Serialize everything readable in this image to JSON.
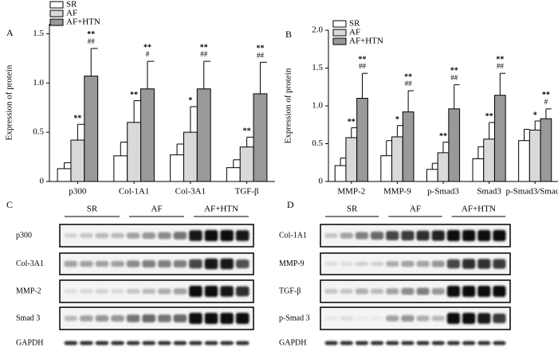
{
  "chart_data": [
    {
      "type": "bar",
      "panel": "A",
      "ylabel": "Expression of protein",
      "categories": [
        "p300",
        "Col-1A1",
        "Col-3A1",
        "TGF-β"
      ],
      "ylim": [
        0,
        1.6
      ],
      "yticks": [
        0,
        0.5,
        {
          "value": 1,
          "label": "1.0"
        },
        1.5
      ],
      "series": [
        {
          "name": "SR",
          "color": "#ffffff",
          "values": [
            0.13,
            0.26,
            0.27,
            0.14
          ],
          "errors": [
            0.06,
            0.14,
            0.11,
            0.08
          ]
        },
        {
          "name": "AF",
          "color": "#d9d9d9",
          "values": [
            0.42,
            0.6,
            0.5,
            0.35
          ],
          "errors": [
            0.16,
            0.22,
            0.26,
            0.1
          ],
          "labels": [
            "**",
            "**",
            "*",
            "**"
          ]
        },
        {
          "name": "AF+HTN",
          "color": "#999999",
          "values": [
            1.07,
            0.94,
            0.94,
            0.89
          ],
          "errors": [
            0.28,
            0.28,
            0.28,
            0.32
          ],
          "labels": [
            "**",
            "**",
            "**",
            "**"
          ],
          "labels_vs_af": [
            "##",
            "#",
            "##",
            "##"
          ]
        }
      ]
    },
    {
      "type": "bar",
      "panel": "B",
      "ylabel": "Expression of protein",
      "categories": [
        "MMP-2",
        "MMP-9",
        "p-Smad3",
        "Smad3",
        "p-Smad3/Smad3"
      ],
      "ylim": [
        0,
        2
      ],
      "yticks": [
        0,
        0.5,
        {
          "value": 1,
          "label": "1.0"
        },
        1.5,
        {
          "value": 2,
          "label": "2.0"
        }
      ],
      "series": [
        {
          "name": "SR",
          "color": "#ffffff",
          "values": [
            0.21,
            0.34,
            0.16,
            0.3,
            0.54
          ],
          "errors": [
            0.1,
            0.2,
            0.08,
            0.16,
            0.15
          ]
        },
        {
          "name": "AF",
          "color": "#d9d9d9",
          "values": [
            0.58,
            0.59,
            0.38,
            0.56,
            0.68
          ],
          "errors": [
            0.13,
            0.15,
            0.14,
            0.22,
            0.12
          ],
          "labels": [
            "**",
            "*",
            "**",
            "**",
            "*"
          ]
        },
        {
          "name": "AF+HTN",
          "color": "#999999",
          "values": [
            1.1,
            0.92,
            0.96,
            1.14,
            0.83
          ],
          "errors": [
            0.33,
            0.28,
            0.32,
            0.29,
            0.13
          ],
          "labels": [
            "**",
            "**",
            "**",
            "**",
            "**"
          ],
          "labels_vs_af": [
            "##",
            "##",
            "##",
            "##",
            "#"
          ]
        }
      ]
    }
  ],
  "blots": [
    {
      "panel": "C",
      "groups": [
        "SR",
        "AF",
        "AF+HTN"
      ],
      "rows": [
        "p300",
        "Col-3A1",
        "MMP-2",
        "Smad 3",
        "GAPDH"
      ]
    },
    {
      "panel": "D",
      "groups": [
        "SR",
        "AF",
        "AF+HTN"
      ],
      "rows": [
        "Col-1A1",
        "MMP-9",
        "TGF-β",
        "p-Smad 3",
        "GAPDH"
      ]
    }
  ]
}
